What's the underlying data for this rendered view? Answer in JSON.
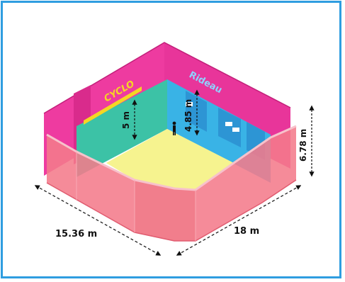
{
  "diagram": {
    "cyclo_label": "CYCLO",
    "rideau_label": "Rideau",
    "dim_depth": "15.36 m",
    "dim_width": "18 m",
    "dim_height_outer": "6.78 m",
    "dim_height_cyclo": "5 m",
    "dim_height_rideau": "4.85 m"
  },
  "colors": {
    "frame": "#2f9de0",
    "walls": "#ee3ba0",
    "floor": "#f6f38f",
    "cyclo_wall": "#3cc2a6",
    "rideau_wall": "#39b3e6",
    "front_wall": "#f47b8b",
    "cyclo_text": "#f5d623",
    "rideau_text": "#8fd3ff"
  },
  "icons": [
    "person-icon",
    "light-fixture-icon"
  ]
}
